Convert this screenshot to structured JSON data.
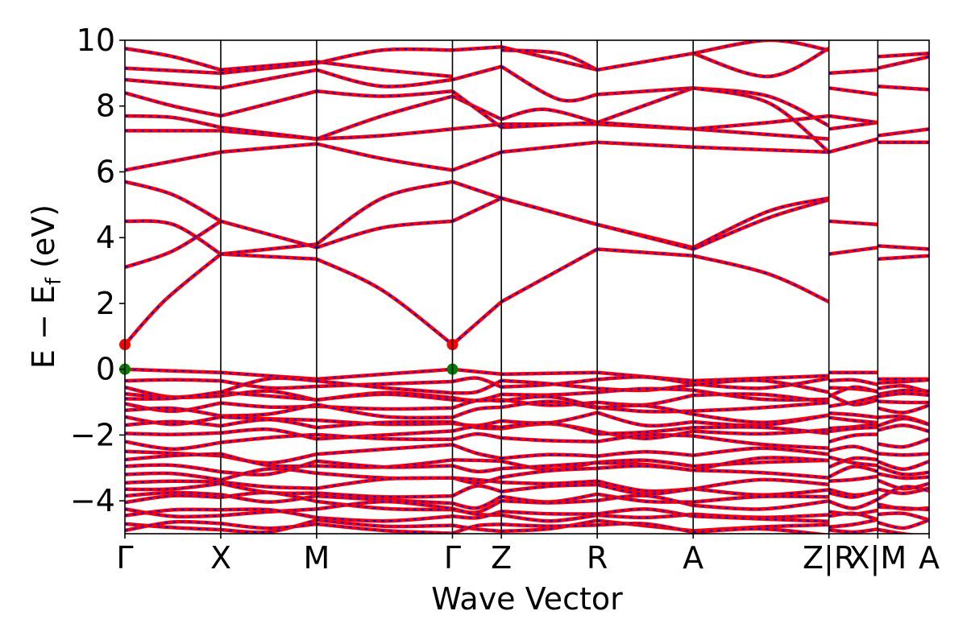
{
  "chart_data": {
    "type": "line",
    "title": "",
    "xlabel": "Wave Vector",
    "ylabel_main": "E − E",
    "ylabel_sub": "f",
    "ylabel_tail": " (eV)",
    "ylim": [
      -5,
      10
    ],
    "yticks": [
      -4,
      -2,
      0,
      2,
      4,
      6,
      8,
      10
    ],
    "ytick_labels": [
      "−4",
      "−2",
      "0",
      "2",
      "4",
      "6",
      "8",
      "10"
    ],
    "grid": false,
    "legend": "none",
    "colors": {
      "line": "#ff0000",
      "line_dash": "#0000ff",
      "cbm": "#ff0000",
      "vbm": "#006400"
    },
    "kpath": [
      {
        "label": "Γ",
        "x": 0.0
      },
      {
        "label": "X",
        "x": 0.1192
      },
      {
        "label": "M",
        "x": 0.2384
      },
      {
        "label": "Γ",
        "x": 0.4073
      },
      {
        "label": "Z",
        "x": 0.4681
      },
      {
        "label": "R",
        "x": 0.5873
      },
      {
        "label": "A",
        "x": 0.7066
      },
      {
        "label": "Z|R",
        "x": 0.8754
      },
      {
        "label": "X|M",
        "x": 0.9362
      },
      {
        "label": "A",
        "x": 1.0
      }
    ],
    "conduction_bands": [
      {
        "name": "c1",
        "segments": [
          {
            "k": [
              0.0,
              0.05,
              0.1192
            ],
            "e": [
              0.75,
              2.1,
              3.5
            ]
          },
          {
            "k": [
              0.1192,
              0.2384
            ],
            "e": [
              3.5,
              3.35
            ]
          },
          {
            "k": [
              0.2384,
              0.32,
              0.4073
            ],
            "e": [
              3.35,
              2.4,
              0.75
            ]
          },
          {
            "k": [
              0.4073,
              0.4681
            ],
            "e": [
              0.75,
              2.05
            ]
          },
          {
            "k": [
              0.4681,
              0.5873
            ],
            "e": [
              2.05,
              3.65
            ]
          },
          {
            "k": [
              0.5873,
              0.7066
            ],
            "e": [
              3.65,
              3.45
            ]
          },
          {
            "k": [
              0.7066,
              0.8,
              0.8754
            ],
            "e": [
              3.45,
              2.9,
              2.05
            ]
          },
          {
            "k": [
              0.8754,
              0.9362
            ],
            "e": [
              3.5,
              3.7
            ]
          },
          {
            "k": [
              0.9362,
              1.0
            ],
            "e": [
              3.35,
              3.45
            ]
          }
        ]
      },
      {
        "name": "c2",
        "segments": [
          {
            "k": [
              0.0,
              0.06,
              0.1192
            ],
            "e": [
              3.1,
              3.6,
              4.5
            ]
          },
          {
            "k": [
              0.1192,
              0.2384
            ],
            "e": [
              4.5,
              3.7
            ]
          },
          {
            "k": [
              0.2384,
              0.32,
              0.4073
            ],
            "e": [
              3.7,
              4.3,
              4.5
            ]
          },
          {
            "k": [
              0.4073,
              0.4681
            ],
            "e": [
              4.5,
              5.2
            ]
          },
          {
            "k": [
              0.4681,
              0.5873
            ],
            "e": [
              5.2,
              4.4
            ]
          },
          {
            "k": [
              0.5873,
              0.7066
            ],
            "e": [
              4.4,
              3.7
            ]
          },
          {
            "k": [
              0.7066,
              0.8,
              0.8754
            ],
            "e": [
              3.7,
              4.8,
              5.2
            ]
          },
          {
            "k": [
              0.8754,
              0.9362
            ],
            "e": [
              4.5,
              4.4
            ]
          },
          {
            "k": [
              0.9362,
              1.0
            ],
            "e": [
              3.75,
              3.65
            ]
          }
        ]
      },
      {
        "name": "c3",
        "segments": [
          {
            "k": [
              0.0,
              0.06,
              0.1192
            ],
            "e": [
              4.5,
              4.4,
              3.5
            ]
          },
          {
            "k": [
              0.1192,
              0.2384
            ],
            "e": [
              3.5,
              3.8
            ]
          },
          {
            "k": [
              0.2384,
              0.32,
              0.4073
            ],
            "e": [
              3.8,
              5.2,
              5.7
            ]
          },
          {
            "k": [
              0.4073,
              0.4681
            ],
            "e": [
              5.7,
              5.2
            ]
          },
          {
            "k": [
              0.4681,
              0.5873
            ],
            "e": [
              5.2,
              4.4
            ]
          },
          {
            "k": [
              0.5873,
              0.7066
            ],
            "e": [
              4.4,
              3.65
            ]
          },
          {
            "k": [
              0.7066,
              0.8,
              0.8754
            ],
            "e": [
              3.65,
              4.6,
              5.15
            ]
          }
        ]
      },
      {
        "name": "c4",
        "segments": [
          {
            "k": [
              0.0,
              0.06,
              0.1192
            ],
            "e": [
              5.7,
              5.3,
              4.5
            ]
          },
          {
            "k": [
              0.4073,
              0.4681
            ],
            "e": [
              6.05,
              6.6
            ]
          },
          {
            "k": [
              0.0,
              0.1192
            ],
            "e": [
              6.05,
              6.6
            ]
          },
          {
            "k": [
              0.1192,
              0.2384
            ],
            "e": [
              6.6,
              6.85
            ]
          },
          {
            "k": [
              0.2384,
              0.32,
              0.4073
            ],
            "e": [
              6.85,
              6.4,
              6.05
            ]
          },
          {
            "k": [
              0.4681,
              0.5873
            ],
            "e": [
              6.6,
              6.9
            ]
          },
          {
            "k": [
              0.5873,
              0.7066
            ],
            "e": [
              6.9,
              6.75
            ]
          },
          {
            "k": [
              0.7066,
              0.8754
            ],
            "e": [
              6.75,
              6.6
            ]
          },
          {
            "k": [
              0.8754,
              0.9362
            ],
            "e": [
              6.6,
              7.0
            ]
          },
          {
            "k": [
              0.9362,
              1.0
            ],
            "e": [
              6.9,
              6.9
            ]
          }
        ]
      },
      {
        "name": "c5",
        "segments": [
          {
            "k": [
              0.0,
              0.1192
            ],
            "e": [
              7.25,
              7.25
            ]
          },
          {
            "k": [
              0.1192,
              0.2384
            ],
            "e": [
              7.25,
              7.0
            ]
          },
          {
            "k": [
              0.2384,
              0.32,
              0.4073
            ],
            "e": [
              7.0,
              7.1,
              7.3
            ]
          },
          {
            "k": [
              0.4073,
              0.4681
            ],
            "e": [
              7.3,
              7.45
            ]
          },
          {
            "k": [
              0.4681,
              0.5873
            ],
            "e": [
              7.45,
              7.45
            ]
          },
          {
            "k": [
              0.5873,
              0.7066
            ],
            "e": [
              7.45,
              7.3
            ]
          },
          {
            "k": [
              0.7066,
              0.8754
            ],
            "e": [
              7.3,
              7.0
            ]
          },
          {
            "k": [
              0.8754,
              0.9362
            ],
            "e": [
              7.3,
              7.5
            ]
          },
          {
            "k": [
              0.9362,
              1.0
            ],
            "e": [
              7.1,
              7.3
            ]
          }
        ]
      },
      {
        "name": "c6",
        "segments": [
          {
            "k": [
              0.0,
              0.06,
              0.1192
            ],
            "e": [
              7.7,
              7.65,
              7.35
            ]
          },
          {
            "k": [
              0.1192,
              0.2384
            ],
            "e": [
              7.35,
              7.0
            ]
          },
          {
            "k": [
              0.2384,
              0.32,
              0.4073
            ],
            "e": [
              7.0,
              7.7,
              8.3
            ]
          },
          {
            "k": [
              0.4073,
              0.4681
            ],
            "e": [
              8.3,
              7.6
            ]
          },
          {
            "k": [
              0.4681,
              0.52,
              0.5873
            ],
            "e": [
              7.6,
              7.9,
              7.5
            ]
          },
          {
            "k": [
              0.5873,
              0.7066
            ],
            "e": [
              7.5,
              7.3
            ]
          },
          {
            "k": [
              0.7066,
              0.8,
              0.8754
            ],
            "e": [
              7.3,
              7.5,
              7.7
            ]
          },
          {
            "k": [
              0.8754,
              0.9362
            ],
            "e": [
              7.7,
              7.5
            ]
          }
        ]
      },
      {
        "name": "c7",
        "segments": [
          {
            "k": [
              0.0,
              0.06,
              0.1192
            ],
            "e": [
              8.4,
              8.0,
              7.7
            ]
          },
          {
            "k": [
              0.1192,
              0.2384
            ],
            "e": [
              7.7,
              8.45
            ]
          },
          {
            "k": [
              0.2384,
              0.32,
              0.4073
            ],
            "e": [
              8.45,
              8.3,
              8.45
            ]
          },
          {
            "k": [
              0.4073,
              0.4681
            ],
            "e": [
              8.45,
              7.35
            ]
          },
          {
            "k": [
              0.4681,
              0.5873
            ],
            "e": [
              7.35,
              7.5
            ]
          },
          {
            "k": [
              0.5873,
              0.7066
            ],
            "e": [
              7.5,
              8.55
            ]
          },
          {
            "k": [
              0.7066,
              0.8,
              0.8754
            ],
            "e": [
              8.55,
              8.3,
              7.4
            ]
          },
          {
            "k": [
              0.8754,
              0.9362
            ],
            "e": [
              8.55,
              8.35
            ]
          },
          {
            "k": [
              0.9362,
              1.0
            ],
            "e": [
              8.6,
              8.5
            ]
          }
        ]
      },
      {
        "name": "c8",
        "segments": [
          {
            "k": [
              0.0,
              0.1192
            ],
            "e": [
              8.8,
              8.55
            ]
          },
          {
            "k": [
              0.1192,
              0.2384
            ],
            "e": [
              8.55,
              9.1
            ]
          },
          {
            "k": [
              0.2384,
              0.32,
              0.4073
            ],
            "e": [
              9.1,
              8.6,
              8.8
            ]
          },
          {
            "k": [
              0.4073,
              0.4681
            ],
            "e": [
              8.8,
              9.2
            ]
          },
          {
            "k": [
              0.4681,
              0.54,
              0.5873
            ],
            "e": [
              9.2,
              8.2,
              8.35
            ]
          },
          {
            "k": [
              0.5873,
              0.7066
            ],
            "e": [
              8.35,
              8.55
            ]
          },
          {
            "k": [
              0.7066,
              0.8,
              0.8754
            ],
            "e": [
              8.55,
              8.1,
              6.6
            ]
          },
          {
            "k": [
              0.8754,
              0.9362
            ],
            "e": [
              9.0,
              9.1
            ]
          },
          {
            "k": [
              0.9362,
              1.0
            ],
            "e": [
              9.15,
              9.5
            ]
          }
        ]
      },
      {
        "name": "c9",
        "segments": [
          {
            "k": [
              0.0,
              0.1192
            ],
            "e": [
              9.15,
              9.0
            ]
          },
          {
            "k": [
              0.1192,
              0.2384
            ],
            "e": [
              9.0,
              9.3
            ]
          },
          {
            "k": [
              0.2384,
              0.32,
              0.4073
            ],
            "e": [
              9.3,
              9.7,
              9.7
            ]
          },
          {
            "k": [
              0.4073,
              0.4681
            ],
            "e": [
              9.7,
              9.8
            ]
          },
          {
            "k": [
              0.4681,
              0.5873
            ],
            "e": [
              9.8,
              9.1
            ]
          },
          {
            "k": [
              0.5873,
              0.7066
            ],
            "e": [
              9.1,
              9.6
            ]
          },
          {
            "k": [
              0.7066,
              0.8,
              0.8754
            ],
            "e": [
              9.6,
              8.9,
              9.75
            ]
          },
          {
            "k": [
              0.9362,
              1.0
            ],
            "e": [
              9.5,
              9.6
            ]
          }
        ]
      },
      {
        "name": "c10",
        "segments": [
          {
            "k": [
              0.0,
              0.06,
              0.1192
            ],
            "e": [
              9.75,
              9.5,
              9.1
            ]
          },
          {
            "k": [
              0.1192,
              0.2384
            ],
            "e": [
              9.1,
              9.35
            ]
          },
          {
            "k": [
              0.2384,
              0.32,
              0.4073
            ],
            "e": [
              9.35,
              9.1,
              8.9
            ]
          },
          {
            "k": [
              0.4681,
              0.54,
              0.5873
            ],
            "e": [
              9.7,
              9.6,
              9.1
            ]
          },
          {
            "k": [
              0.7066,
              0.8,
              0.8754
            ],
            "e": [
              9.6,
              10.0,
              9.7
            ]
          }
        ]
      }
    ],
    "valence_bands": [
      {
        "name": "v1",
        "segments": [
          {
            "k": [
              0.0,
              0.1192
            ],
            "e": [
              0.0,
              -0.1
            ]
          },
          {
            "k": [
              0.1192,
              0.2384
            ],
            "e": [
              -0.1,
              -0.3
            ]
          },
          {
            "k": [
              0.2384,
              0.4073
            ],
            "e": [
              -0.3,
              0.0
            ]
          },
          {
            "k": [
              0.4073,
              0.4681
            ],
            "e": [
              0.0,
              -0.15
            ]
          },
          {
            "k": [
              0.4681,
              0.5873
            ],
            "e": [
              -0.15,
              -0.1
            ]
          },
          {
            "k": [
              0.5873,
              0.7066
            ],
            "e": [
              -0.1,
              -0.35
            ]
          },
          {
            "k": [
              0.7066,
              0.8754
            ],
            "e": [
              -0.35,
              -0.2
            ]
          },
          {
            "k": [
              0.8754,
              0.9362
            ],
            "e": [
              -0.1,
              -0.1
            ]
          },
          {
            "k": [
              0.9362,
              1.0
            ],
            "e": [
              -0.3,
              -0.3
            ]
          }
        ]
      }
    ],
    "markers": [
      {
        "label": "CBM",
        "k": 0.0,
        "e": 0.75,
        "color": "#ff0000"
      },
      {
        "label": "CBM",
        "k": 0.4073,
        "e": 0.75,
        "color": "#ff0000"
      },
      {
        "label": "VBM",
        "k": 0.0,
        "e": 0.0,
        "color": "#008000"
      },
      {
        "label": "VBM",
        "k": 0.4073,
        "e": 0.0,
        "color": "#008000"
      }
    ]
  }
}
